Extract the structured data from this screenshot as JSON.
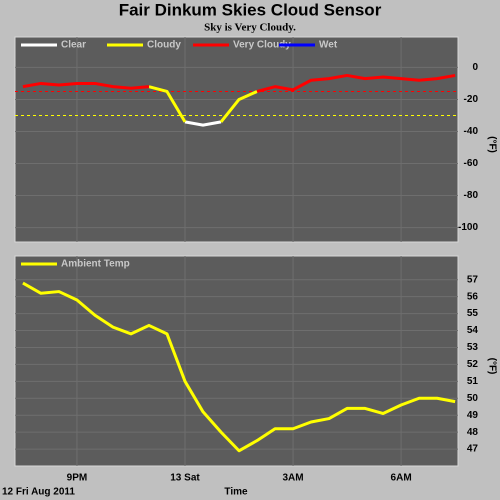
{
  "title": "Fair Dinkum Skies Cloud Sensor",
  "subtitle": "Sky is Very Cloudy.",
  "chart_data": [
    {
      "type": "line",
      "y_label": "(°F)",
      "grid": true,
      "xlim": [
        19.28,
        31.58
      ],
      "ylim": [
        -109,
        19
      ],
      "yticks": [
        0,
        -20,
        -40,
        -60,
        -80,
        -100
      ],
      "reference_lines": [
        {
          "value": -15,
          "color": "#ff0000"
        },
        {
          "value": -30,
          "color": "#ffff00"
        }
      ],
      "x": [
        19.5,
        20,
        20.5,
        21,
        21.5,
        22,
        22.5,
        23,
        23.5,
        24,
        24.5,
        25,
        25.5,
        26,
        26.5,
        27,
        27.5,
        28,
        28.5,
        29,
        29.5,
        30,
        30.5,
        31,
        31.5
      ],
      "series": [
        {
          "name": "Clear",
          "color": "#ffffff",
          "values": [
            null,
            null,
            null,
            null,
            null,
            null,
            null,
            null,
            null,
            -34,
            -36,
            -34,
            null,
            null,
            null,
            null,
            null,
            null,
            null,
            null,
            null,
            null,
            null,
            null,
            null
          ]
        },
        {
          "name": "Cloudy",
          "color": "#ffff00",
          "values": [
            null,
            null,
            null,
            null,
            null,
            null,
            null,
            -12,
            -15,
            -34,
            null,
            -34,
            -20,
            -15,
            null,
            null,
            null,
            null,
            null,
            null,
            null,
            null,
            null,
            null,
            null
          ]
        },
        {
          "name": "Very Cloudy",
          "color": "#ff0000",
          "values": [
            -12,
            -10,
            -11,
            -10,
            -10,
            -12,
            -13,
            -12,
            null,
            null,
            null,
            null,
            null,
            -15,
            -12,
            -14,
            -8,
            -7,
            -5,
            -7,
            -6,
            -7,
            -8,
            -7,
            -5
          ]
        },
        {
          "name": "Wet",
          "color": "#0000ff",
          "values": [
            null,
            null,
            null,
            null,
            null,
            null,
            null,
            null,
            null,
            null,
            null,
            null,
            null,
            null,
            null,
            null,
            null,
            null,
            null,
            null,
            null,
            null,
            null,
            null,
            null
          ]
        }
      ]
    },
    {
      "type": "line",
      "y_label": "(°F)",
      "x_label": "Time",
      "date_label": "12 Fri Aug 2011",
      "grid": true,
      "xlim": [
        19.28,
        31.58
      ],
      "ylim": [
        46,
        58.4
      ],
      "yticks": [
        47,
        48,
        49,
        50,
        51,
        52,
        53,
        54,
        55,
        56,
        57
      ],
      "xticks": [
        {
          "value": 21,
          "label": "9PM"
        },
        {
          "value": 24,
          "label": "13 Sat"
        },
        {
          "value": 27,
          "label": "3AM"
        },
        {
          "value": 30,
          "label": "6AM"
        }
      ],
      "x": [
        19.5,
        20,
        20.5,
        21,
        21.5,
        22,
        22.5,
        23,
        23.5,
        24,
        24.5,
        25,
        25.5,
        26,
        26.5,
        27,
        27.5,
        28,
        28.5,
        29,
        29.5,
        30,
        30.5,
        31,
        31.5
      ],
      "series": [
        {
          "name": "Ambient Temp",
          "color": "#ffff00",
          "values": [
            56.8,
            56.2,
            56.3,
            55.8,
            54.9,
            54.2,
            53.8,
            54.3,
            53.8,
            51.0,
            49.2,
            48.0,
            46.9,
            47.5,
            48.2,
            48.2,
            48.6,
            48.8,
            49.4,
            49.4,
            49.1,
            49.6,
            50.0,
            50.0,
            49.8
          ]
        }
      ]
    }
  ]
}
